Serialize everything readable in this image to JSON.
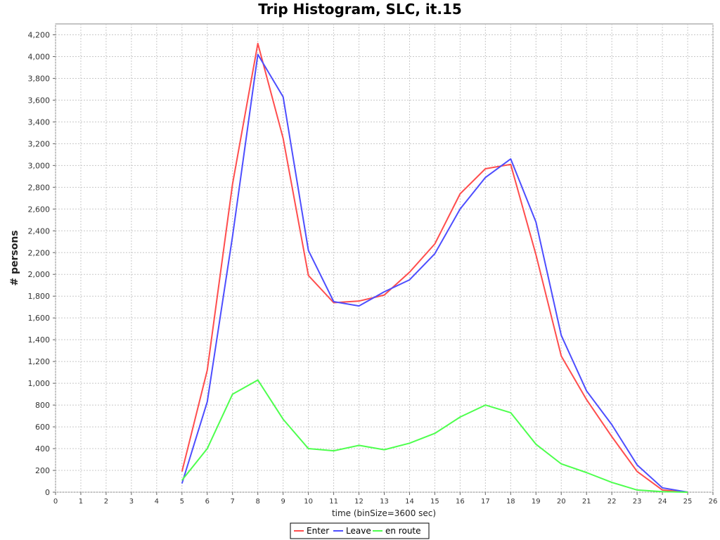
{
  "chart_data": {
    "type": "line",
    "title": "Trip Histogram, SLC, it.15",
    "xlabel": "time (binSize=3600 sec)",
    "ylabel": "# persons",
    "xlim": [
      0,
      26
    ],
    "ylim": [
      0,
      4300
    ],
    "x_ticks": [
      "0",
      "1",
      "2",
      "3",
      "4",
      "5",
      "6",
      "7",
      "8",
      "9",
      "10",
      "11",
      "12",
      "13",
      "14",
      "15",
      "16",
      "17",
      "18",
      "19",
      "20",
      "21",
      "22",
      "23",
      "24",
      "25",
      "26"
    ],
    "y_ticks": [
      "0",
      "200",
      "400",
      "600",
      "800",
      "1,000",
      "1,200",
      "1,400",
      "1,600",
      "1,800",
      "2,000",
      "2,200",
      "2,400",
      "2,600",
      "2,800",
      "3,000",
      "3,200",
      "3,400",
      "3,600",
      "3,800",
      "4,000",
      "4,200"
    ],
    "grid": true,
    "legend_position": "bottom",
    "x": [
      5,
      6,
      7,
      8,
      9,
      10,
      11,
      12,
      13,
      14,
      15,
      16,
      17,
      18,
      19,
      20,
      21,
      22,
      23,
      24,
      25
    ],
    "series": [
      {
        "name": "Enter",
        "color": "#ff4d4d",
        "values": [
          190,
          1120,
          2830,
          4120,
          3250,
          1990,
          1740,
          1755,
          1810,
          2020,
          2280,
          2740,
          2970,
          3010,
          2180,
          1250,
          850,
          510,
          190,
          20,
          0
        ]
      },
      {
        "name": "Leave",
        "color": "#4d4dff",
        "values": [
          80,
          830,
          2350,
          4020,
          3630,
          2220,
          1750,
          1710,
          1840,
          1950,
          2190,
          2600,
          2890,
          3060,
          2480,
          1440,
          930,
          620,
          250,
          40,
          0
        ]
      },
      {
        "name": "en route",
        "color": "#4dff4d",
        "values": [
          110,
          400,
          900,
          1030,
          670,
          400,
          380,
          430,
          390,
          450,
          540,
          690,
          800,
          730,
          440,
          260,
          180,
          90,
          20,
          5,
          0
        ]
      }
    ]
  }
}
